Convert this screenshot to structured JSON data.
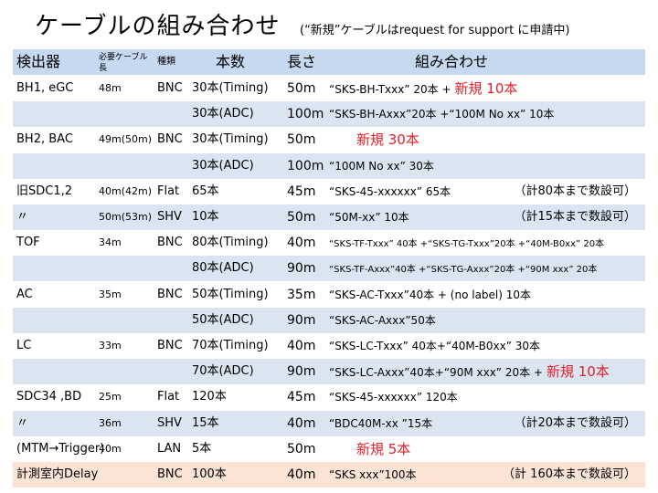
{
  "title": "ケーブルの組み合わせ",
  "subtitle": "(“新規”ケーブルはrequest for support に申請中)",
  "header": {
    "col_detector": "検出器",
    "col_needed_length": "必要ケーブル長",
    "col_type": "種類",
    "col_count": "本数",
    "col_length": "長さ",
    "col_combination": "組み合わせ"
  },
  "rows": [
    {
      "detector": "BH1, eGC",
      "needed": "48m",
      "type": "BNC",
      "count": "30本(Timing)",
      "length": "50m",
      "combo": "“SKS-BH-Txxx” 20本 +",
      "extra": "新規 10本",
      "note": ""
    },
    {
      "detector": "",
      "needed": "",
      "type": "",
      "count": "30本(ADC)",
      "length": "100m",
      "combo": "“SKS-BH-Axxx”20本 +“100M No xx” 10本",
      "extra": "",
      "note": ""
    },
    {
      "detector": "BH2, BAC",
      "needed": "49m(50m)",
      "type": "BNC",
      "count": "30本(Timing)",
      "length": "50m",
      "combo": "",
      "extra": "新規 30本",
      "note": ""
    },
    {
      "detector": "",
      "needed": "",
      "type": "",
      "count": "30本(ADC)",
      "length": "100m",
      "combo": "“100M No xx” 30本",
      "extra": "",
      "note": ""
    },
    {
      "detector": "旧SDC1,2",
      "needed": "40m(42m)",
      "type": "Flat",
      "count": "65本",
      "length": "45m",
      "combo": "“SKS-45-xxxxxx” 65本",
      "extra": "",
      "note": "（計80本まで数設可）"
    },
    {
      "detector": "〃",
      "needed": "50m(53m)",
      "type": "SHV",
      "count": "10本",
      "length": "50m",
      "combo": "“50M-xx” 10本",
      "extra": "",
      "note": "（計15本まで数設可）"
    },
    {
      "detector": "TOF",
      "needed": "34m",
      "type": "BNC",
      "count": "80本(Timing)",
      "length": "40m",
      "combo": "“SKS-TF-Txxx” 40本 +“SKS-TG-Txxx”20本 +“40M-B0xx” 20本",
      "extra": "",
      "note": ""
    },
    {
      "detector": "",
      "needed": "",
      "type": "",
      "count": "80本(ADC)",
      "length": "90m",
      "combo": "“SKS-TF-Axxx”40本 +“SKS-TG-Axxx”20本 +“90M xxx” 20本",
      "extra": "",
      "note": ""
    },
    {
      "detector": "AC",
      "needed": "35m",
      "type": "BNC",
      "count": "50本(Timing)",
      "length": "35m",
      "combo": "“SKS-AC-Txxx”40本 + (no label) 10本",
      "extra": "",
      "note": ""
    },
    {
      "detector": "",
      "needed": "",
      "type": "",
      "count": "50本(ADC)",
      "length": "90m",
      "combo": "“SKS-AC-Axxx”50本",
      "extra": "",
      "note": ""
    },
    {
      "detector": "LC",
      "needed": "33m",
      "type": "BNC",
      "count": "70本(Timing)",
      "length": "40m",
      "combo": "“SKS-LC-Txxx” 40本+“40M-B0xx” 30本",
      "extra": "",
      "note": ""
    },
    {
      "detector": "",
      "needed": "",
      "type": "",
      "count": "70本(ADC)",
      "length": "90m",
      "combo": "“SKS-LC-Axxx”40本+“90M xxx” 20本 +",
      "extra": "新規 10本",
      "note": ""
    },
    {
      "detector": "SDC34 ,BD",
      "needed": "25m",
      "type": "Flat",
      "count": "120本",
      "length": "45m",
      "combo": "“SKS-45-xxxxxx” 120本",
      "extra": "",
      "note": ""
    },
    {
      "detector": "〃",
      "needed": "36m",
      "type": "SHV",
      "count": "15本",
      "length": "40m",
      "combo": "“BDC40M-xx ”15本",
      "extra": "",
      "note": "（計20本まで数設可）"
    },
    {
      "detector": "(MTM→Trigger)",
      "needed": "40m",
      "type": "LAN",
      "count": "5本",
      "length": "50m",
      "combo": "",
      "extra": "新規 5本",
      "note": ""
    },
    {
      "detector": "計測室内Delay",
      "needed": "",
      "type": "BNC",
      "count": "100本",
      "length": "40m",
      "combo": "“SKS xxx”100本",
      "extra": "",
      "note": "（計 160本まで数設可）"
    }
  ],
  "colors": {
    "band": "#dbe5f1",
    "highlight": "#fbe4d5",
    "new_text": "#e0202a"
  }
}
